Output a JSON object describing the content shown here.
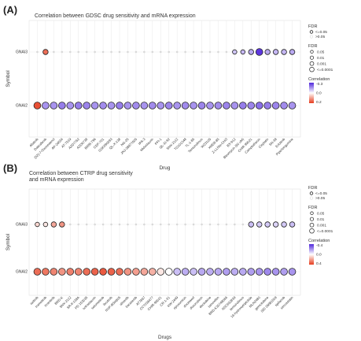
{
  "panels": [
    {
      "label": "(A)",
      "title": [
        "Correlation between GDSC drug sensitivity and mRNA expression"
      ],
      "ylabel": "Symbol",
      "xlabel": "Drug",
      "genes": [
        "GNAI3",
        "GNAI2"
      ],
      "drugs": [
        "Afatinib",
        "Dabrafenib",
        "(5Z)-7-Oxozeaenol",
        "AP-24534",
        "AT-7519",
        "AZD7762",
        "AZD6738",
        "BIRB-796",
        "CEP-701",
        "GSK690693",
        "QL-X-138",
        "NG-25",
        "JNJ-38877605",
        "IPA-3",
        "Midostaurin",
        "PFI-1",
        "QL-XI-92",
        "SNX-2112",
        "TG101348",
        "TL-1-85",
        "Temsirolimus",
        "WZ3105",
        "XMD8-85",
        "Z-LLNle-CHO",
        "BX-912",
        "Bleomycin (50 uM)",
        "CHIR-99021",
        "Camptothecin",
        "Cisplatin",
        "SN-38",
        "Erlotinib",
        "Piperlongumine"
      ],
      "fdr_legend": {
        "title": "FDR",
        "items": [
          "<=0.05",
          ">0.05"
        ]
      },
      "size_legend": {
        "title": "FDR",
        "items": [
          "0.05",
          "0.01",
          "0.001",
          "<=0.0001"
        ]
      },
      "color_legend": {
        "title": "Correlation",
        "top": "-0.3",
        "mid": "0.0",
        "bottom": "0.2"
      }
    },
    {
      "label": "(B)",
      "title": [
        "Correlation between CTRP drug sensitivity",
        "and mRNA expression"
      ],
      "ylabel": "Symbol",
      "xlabel": "Drugs",
      "genes": [
        "GNAI3",
        "GNAI2"
      ],
      "drugs": [
        "axitinib",
        "trametinib",
        "tivantinib",
        "BRD-K",
        "SNX-2112",
        "SR-II-138A",
        "PD 153035",
        "sotrastaurin",
        "selumetinib",
        "ibrutinib",
        "NVP-BSK805",
        "alisertib",
        "barasertib",
        "AT7867",
        "CCT036477",
        "CHIR-99021",
        "CR-1-31",
        "KW-2449",
        "epoxomicin",
        "docetaxel",
        "doxorubicin",
        "decitabine",
        "tamoxifen",
        "BRD-K30748066",
        "NSC632839",
        "temsirolimus",
        "16-hydroxytriptolide",
        "MLN2480",
        "gemcitabine",
        "SID 26681509",
        "tipifarnib",
        "simvastatin"
      ],
      "fdr_legend": {
        "title": "FDR",
        "items": [
          "<=0.05",
          ">0.05"
        ]
      },
      "size_legend": {
        "title": "FDR",
        "items": [
          "0.05",
          "0.01",
          "0.001",
          "<=0.0001"
        ]
      },
      "color_legend": {
        "title": "Correlation",
        "top": "-0.4",
        "mid": "0.0",
        "bottom": "0.4"
      }
    }
  ],
  "chart_data": [
    {
      "type": "scatter",
      "title": "Correlation between GDSC drug sensitivity and mRNA expression",
      "xlabel": "Drug",
      "ylabel": "Symbol",
      "categories_x": [
        "Afatinib",
        "Dabrafenib",
        "(5Z)-7-Oxozeaenol",
        "AP-24534",
        "AT-7519",
        "AZD7762",
        "AZD6738",
        "BIRB-796",
        "CEP-701",
        "GSK690693",
        "QL-X-138",
        "NG-25",
        "JNJ-38877605",
        "IPA-3",
        "Midostaurin",
        "PFI-1",
        "QL-XI-92",
        "SNX-2112",
        "TG101348",
        "TL-1-85",
        "Temsirolimus",
        "WZ3105",
        "XMD8-85",
        "Z-LLNle-CHO",
        "BX-912",
        "Bleomycin (50 uM)",
        "CHIR-99021",
        "Camptothecin",
        "Cisplatin",
        "SN-38",
        "Erlotinib",
        "Piperlongumine"
      ],
      "categories_y": [
        "GNAI3",
        "GNAI2"
      ],
      "color_range": [
        -0.3,
        0.2
      ],
      "series": [
        {
          "name": "GNAI3",
          "correlation": [
            0.02,
            0.15,
            0.01,
            0.0,
            0.0,
            0.0,
            0.0,
            0.0,
            0.0,
            0.0,
            0.0,
            0.0,
            0.0,
            0.0,
            0.0,
            0.0,
            0.0,
            0.0,
            0.0,
            0.0,
            0.0,
            0.0,
            0.0,
            0.0,
            -0.08,
            -0.1,
            -0.12,
            -0.28,
            -0.12,
            -0.1,
            -0.1,
            -0.12
          ],
          "significant": [
            false,
            true,
            false,
            false,
            false,
            false,
            false,
            false,
            false,
            false,
            false,
            false,
            false,
            false,
            false,
            false,
            false,
            false,
            false,
            false,
            false,
            false,
            false,
            false,
            true,
            true,
            true,
            true,
            true,
            true,
            true,
            true
          ],
          "fdr": [
            0.3,
            0.01,
            0.3,
            0.3,
            0.3,
            0.3,
            0.3,
            0.3,
            0.3,
            0.3,
            0.3,
            0.3,
            0.3,
            0.3,
            0.3,
            0.3,
            0.3,
            0.3,
            0.3,
            0.3,
            0.3,
            0.3,
            0.3,
            0.3,
            0.05,
            0.05,
            0.01,
            0.0001,
            0.01,
            0.01,
            0.01,
            0.01
          ]
        },
        {
          "name": "GNAI2",
          "correlation": [
            0.18,
            -0.15,
            -0.15,
            -0.18,
            -0.15,
            -0.18,
            -0.17,
            -0.15,
            -0.16,
            -0.15,
            -0.18,
            -0.15,
            -0.16,
            -0.15,
            -0.16,
            -0.15,
            -0.17,
            -0.15,
            -0.16,
            -0.15,
            -0.17,
            -0.15,
            -0.16,
            -0.17,
            -0.15,
            -0.18,
            -0.17,
            -0.2,
            -0.18,
            -0.17,
            -0.16,
            -0.15
          ],
          "significant": [
            true,
            true,
            true,
            true,
            true,
            true,
            true,
            true,
            true,
            true,
            true,
            true,
            true,
            true,
            true,
            true,
            true,
            true,
            true,
            true,
            true,
            true,
            true,
            true,
            true,
            true,
            true,
            true,
            true,
            true,
            true,
            true
          ],
          "fdr": [
            0.0001,
            0.0001,
            0.0001,
            0.0001,
            0.0001,
            0.0001,
            0.0001,
            0.0001,
            0.0001,
            0.0001,
            0.0001,
            0.0001,
            0.0001,
            0.0001,
            0.0001,
            0.0001,
            0.0001,
            0.0001,
            0.0001,
            0.0001,
            0.0001,
            0.0001,
            0.0001,
            0.0001,
            0.0001,
            0.0001,
            0.0001,
            0.0001,
            0.0001,
            0.0001,
            0.0001,
            0.0001
          ]
        }
      ]
    },
    {
      "type": "scatter",
      "title": "Correlation between CTRP drug sensitivity and mRNA expression",
      "xlabel": "Drugs",
      "ylabel": "Symbol",
      "categories_x": [
        "axitinib",
        "trametinib",
        "tivantinib",
        "BRD-K",
        "SNX-2112",
        "SR-II-138A",
        "PD 153035",
        "sotrastaurin",
        "selumetinib",
        "ibrutinib",
        "NVP-BSK805",
        "alisertib",
        "barasertib",
        "AT7867",
        "CCT036477",
        "CHIR-99021",
        "CR-1-31",
        "KW-2449",
        "epoxomicin",
        "docetaxel",
        "doxorubicin",
        "decitabine",
        "tamoxifen",
        "BRD-K30748066",
        "NSC632839",
        "temsirolimus",
        "16-hydroxytriptolide",
        "MLN2480",
        "gemcitabine",
        "SID 26681509",
        "tipifarnib",
        "simvastatin"
      ],
      "categories_y": [
        "GNAI3",
        "GNAI2"
      ],
      "color_range": [
        -0.4,
        0.4
      ],
      "series": [
        {
          "name": "GNAI3",
          "correlation": [
            0.08,
            0.05,
            0.18,
            0.22,
            0.0,
            0.0,
            0.0,
            0.0,
            0.0,
            0.0,
            0.0,
            0.0,
            0.0,
            0.0,
            0.0,
            0.0,
            0.0,
            0.0,
            0.0,
            0.0,
            0.0,
            0.0,
            0.0,
            0.0,
            0.0,
            0.0,
            -0.12,
            -0.1,
            -0.1,
            -0.08,
            -0.1,
            -0.12
          ],
          "significant": [
            true,
            true,
            true,
            true,
            false,
            false,
            false,
            false,
            false,
            false,
            false,
            false,
            false,
            false,
            false,
            false,
            false,
            false,
            false,
            false,
            false,
            false,
            false,
            false,
            false,
            false,
            true,
            true,
            true,
            true,
            true,
            true
          ],
          "fdr": [
            0.05,
            0.05,
            0.01,
            0.01,
            0.3,
            0.3,
            0.3,
            0.3,
            0.3,
            0.3,
            0.3,
            0.3,
            0.3,
            0.3,
            0.3,
            0.3,
            0.3,
            0.3,
            0.3,
            0.3,
            0.3,
            0.3,
            0.3,
            0.3,
            0.3,
            0.3,
            0.01,
            0.01,
            0.01,
            0.01,
            0.01,
            0.01
          ]
        },
        {
          "name": "GNAI2",
          "correlation": [
            0.3,
            0.28,
            0.25,
            0.22,
            0.26,
            0.25,
            0.3,
            0.32,
            0.34,
            0.32,
            0.3,
            0.22,
            0.2,
            0.18,
            0.16,
            0.05,
            0.0,
            -0.12,
            -0.15,
            -0.12,
            -0.16,
            -0.15,
            -0.16,
            -0.18,
            -0.15,
            -0.16,
            -0.18,
            -0.2,
            -0.22,
            -0.2,
            -0.18,
            -0.2
          ],
          "significant": [
            true,
            true,
            true,
            true,
            true,
            true,
            true,
            true,
            true,
            true,
            true,
            true,
            true,
            true,
            true,
            true,
            true,
            true,
            true,
            true,
            true,
            true,
            true,
            true,
            true,
            true,
            true,
            true,
            true,
            true,
            true,
            true
          ],
          "fdr": [
            0.0001,
            0.0001,
            0.0001,
            0.0001,
            0.0001,
            0.0001,
            0.0001,
            0.0001,
            0.0001,
            0.0001,
            0.0001,
            0.0001,
            0.0001,
            0.0001,
            0.0001,
            0.0001,
            0.0001,
            0.0001,
            0.0001,
            0.0001,
            0.0001,
            0.0001,
            0.0001,
            0.0001,
            0.0001,
            0.0001,
            0.0001,
            0.0001,
            0.0001,
            0.0001,
            0.0001,
            0.0001
          ]
        }
      ]
    }
  ]
}
